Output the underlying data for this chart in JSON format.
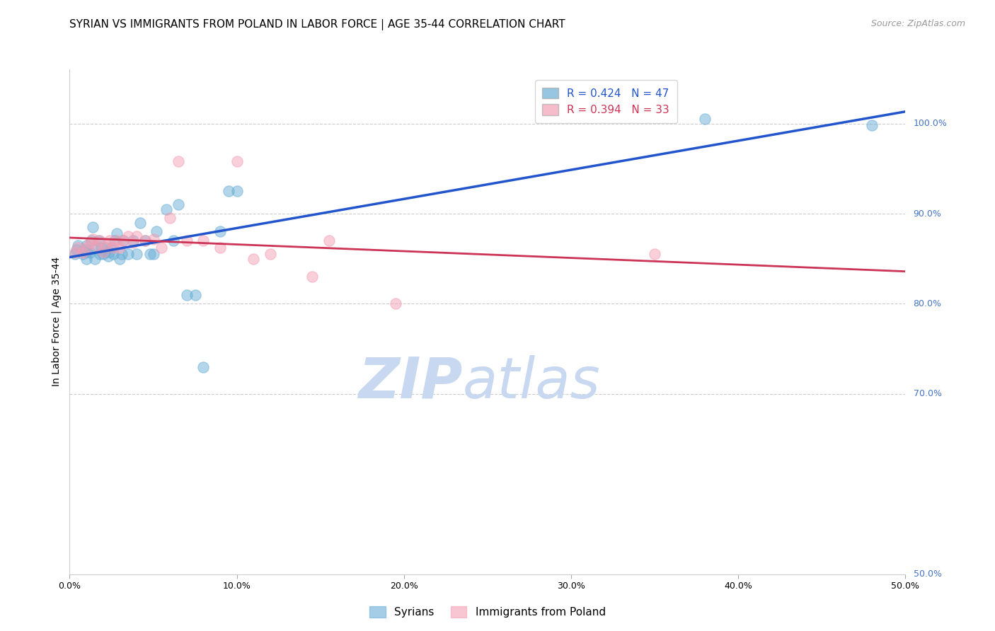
{
  "title": "SYRIAN VS IMMIGRANTS FROM POLAND IN LABOR FORCE | AGE 35-44 CORRELATION CHART",
  "source": "Source: ZipAtlas.com",
  "xlabel_ticks": [
    "0.0%",
    "10.0%",
    "20.0%",
    "30.0%",
    "40.0%",
    "50.0%"
  ],
  "xlabel_vals": [
    0.0,
    0.1,
    0.2,
    0.3,
    0.4,
    0.5
  ],
  "ylabel_ticks": [
    "100.0%",
    "90.0%",
    "80.0%",
    "70.0%",
    "50.0%"
  ],
  "ylabel_vals": [
    1.0,
    0.9,
    0.8,
    0.7,
    0.5
  ],
  "xlim": [
    0.0,
    0.5
  ],
  "ylim": [
    0.5,
    1.06
  ],
  "blue_R": 0.424,
  "blue_N": 47,
  "pink_R": 0.394,
  "pink_N": 33,
  "blue_color": "#6aaed6",
  "pink_color": "#f4a0b5",
  "blue_line_color": "#2255cc",
  "pink_line_color": "#cc3355",
  "legend_label_blue": "R = 0.424   N = 47",
  "legend_label_pink": "R = 0.394   N = 33",
  "legend_label_scatter_blue": "Syrians",
  "legend_label_scatter_pink": "Immigrants from Poland",
  "watermark_zip": "ZIP",
  "watermark_atlas": "atlas",
  "watermark_color": "#c8d8f0",
  "blue_x": [
    0.003,
    0.004,
    0.005,
    0.008,
    0.009,
    0.01,
    0.01,
    0.01,
    0.012,
    0.013,
    0.014,
    0.015,
    0.016,
    0.017,
    0.018,
    0.019,
    0.02,
    0.021,
    0.022,
    0.023,
    0.024,
    0.025,
    0.026,
    0.027,
    0.028,
    0.03,
    0.031,
    0.032,
    0.035,
    0.038,
    0.04,
    0.042,
    0.045,
    0.048,
    0.05,
    0.052,
    0.058,
    0.062,
    0.065,
    0.07,
    0.075,
    0.08,
    0.09,
    0.095,
    0.1,
    0.38,
    0.48
  ],
  "blue_y": [
    0.855,
    0.86,
    0.865,
    0.855,
    0.86,
    0.85,
    0.858,
    0.865,
    0.857,
    0.87,
    0.885,
    0.85,
    0.862,
    0.87,
    0.855,
    0.862,
    0.855,
    0.858,
    0.862,
    0.853,
    0.858,
    0.862,
    0.855,
    0.87,
    0.878,
    0.85,
    0.855,
    0.87,
    0.855,
    0.87,
    0.855,
    0.89,
    0.87,
    0.855,
    0.855,
    0.88,
    0.905,
    0.87,
    0.91,
    0.81,
    0.81,
    0.73,
    0.88,
    0.925,
    0.925,
    1.005,
    0.998
  ],
  "pink_x": [
    0.003,
    0.005,
    0.008,
    0.01,
    0.012,
    0.014,
    0.016,
    0.018,
    0.02,
    0.022,
    0.024,
    0.026,
    0.028,
    0.03,
    0.032,
    0.035,
    0.038,
    0.04,
    0.045,
    0.05,
    0.055,
    0.06,
    0.065,
    0.07,
    0.08,
    0.09,
    0.1,
    0.11,
    0.12,
    0.145,
    0.155,
    0.195,
    0.35
  ],
  "pink_y": [
    0.857,
    0.862,
    0.857,
    0.862,
    0.868,
    0.872,
    0.865,
    0.87,
    0.858,
    0.865,
    0.87,
    0.862,
    0.87,
    0.862,
    0.87,
    0.875,
    0.868,
    0.875,
    0.87,
    0.872,
    0.862,
    0.895,
    0.958,
    0.87,
    0.87,
    0.862,
    0.958,
    0.85,
    0.855,
    0.83,
    0.87,
    0.8,
    0.855
  ],
  "title_fontsize": 11,
  "source_fontsize": 9,
  "axis_label_fontsize": 10,
  "tick_fontsize": 9,
  "legend_fontsize": 11
}
